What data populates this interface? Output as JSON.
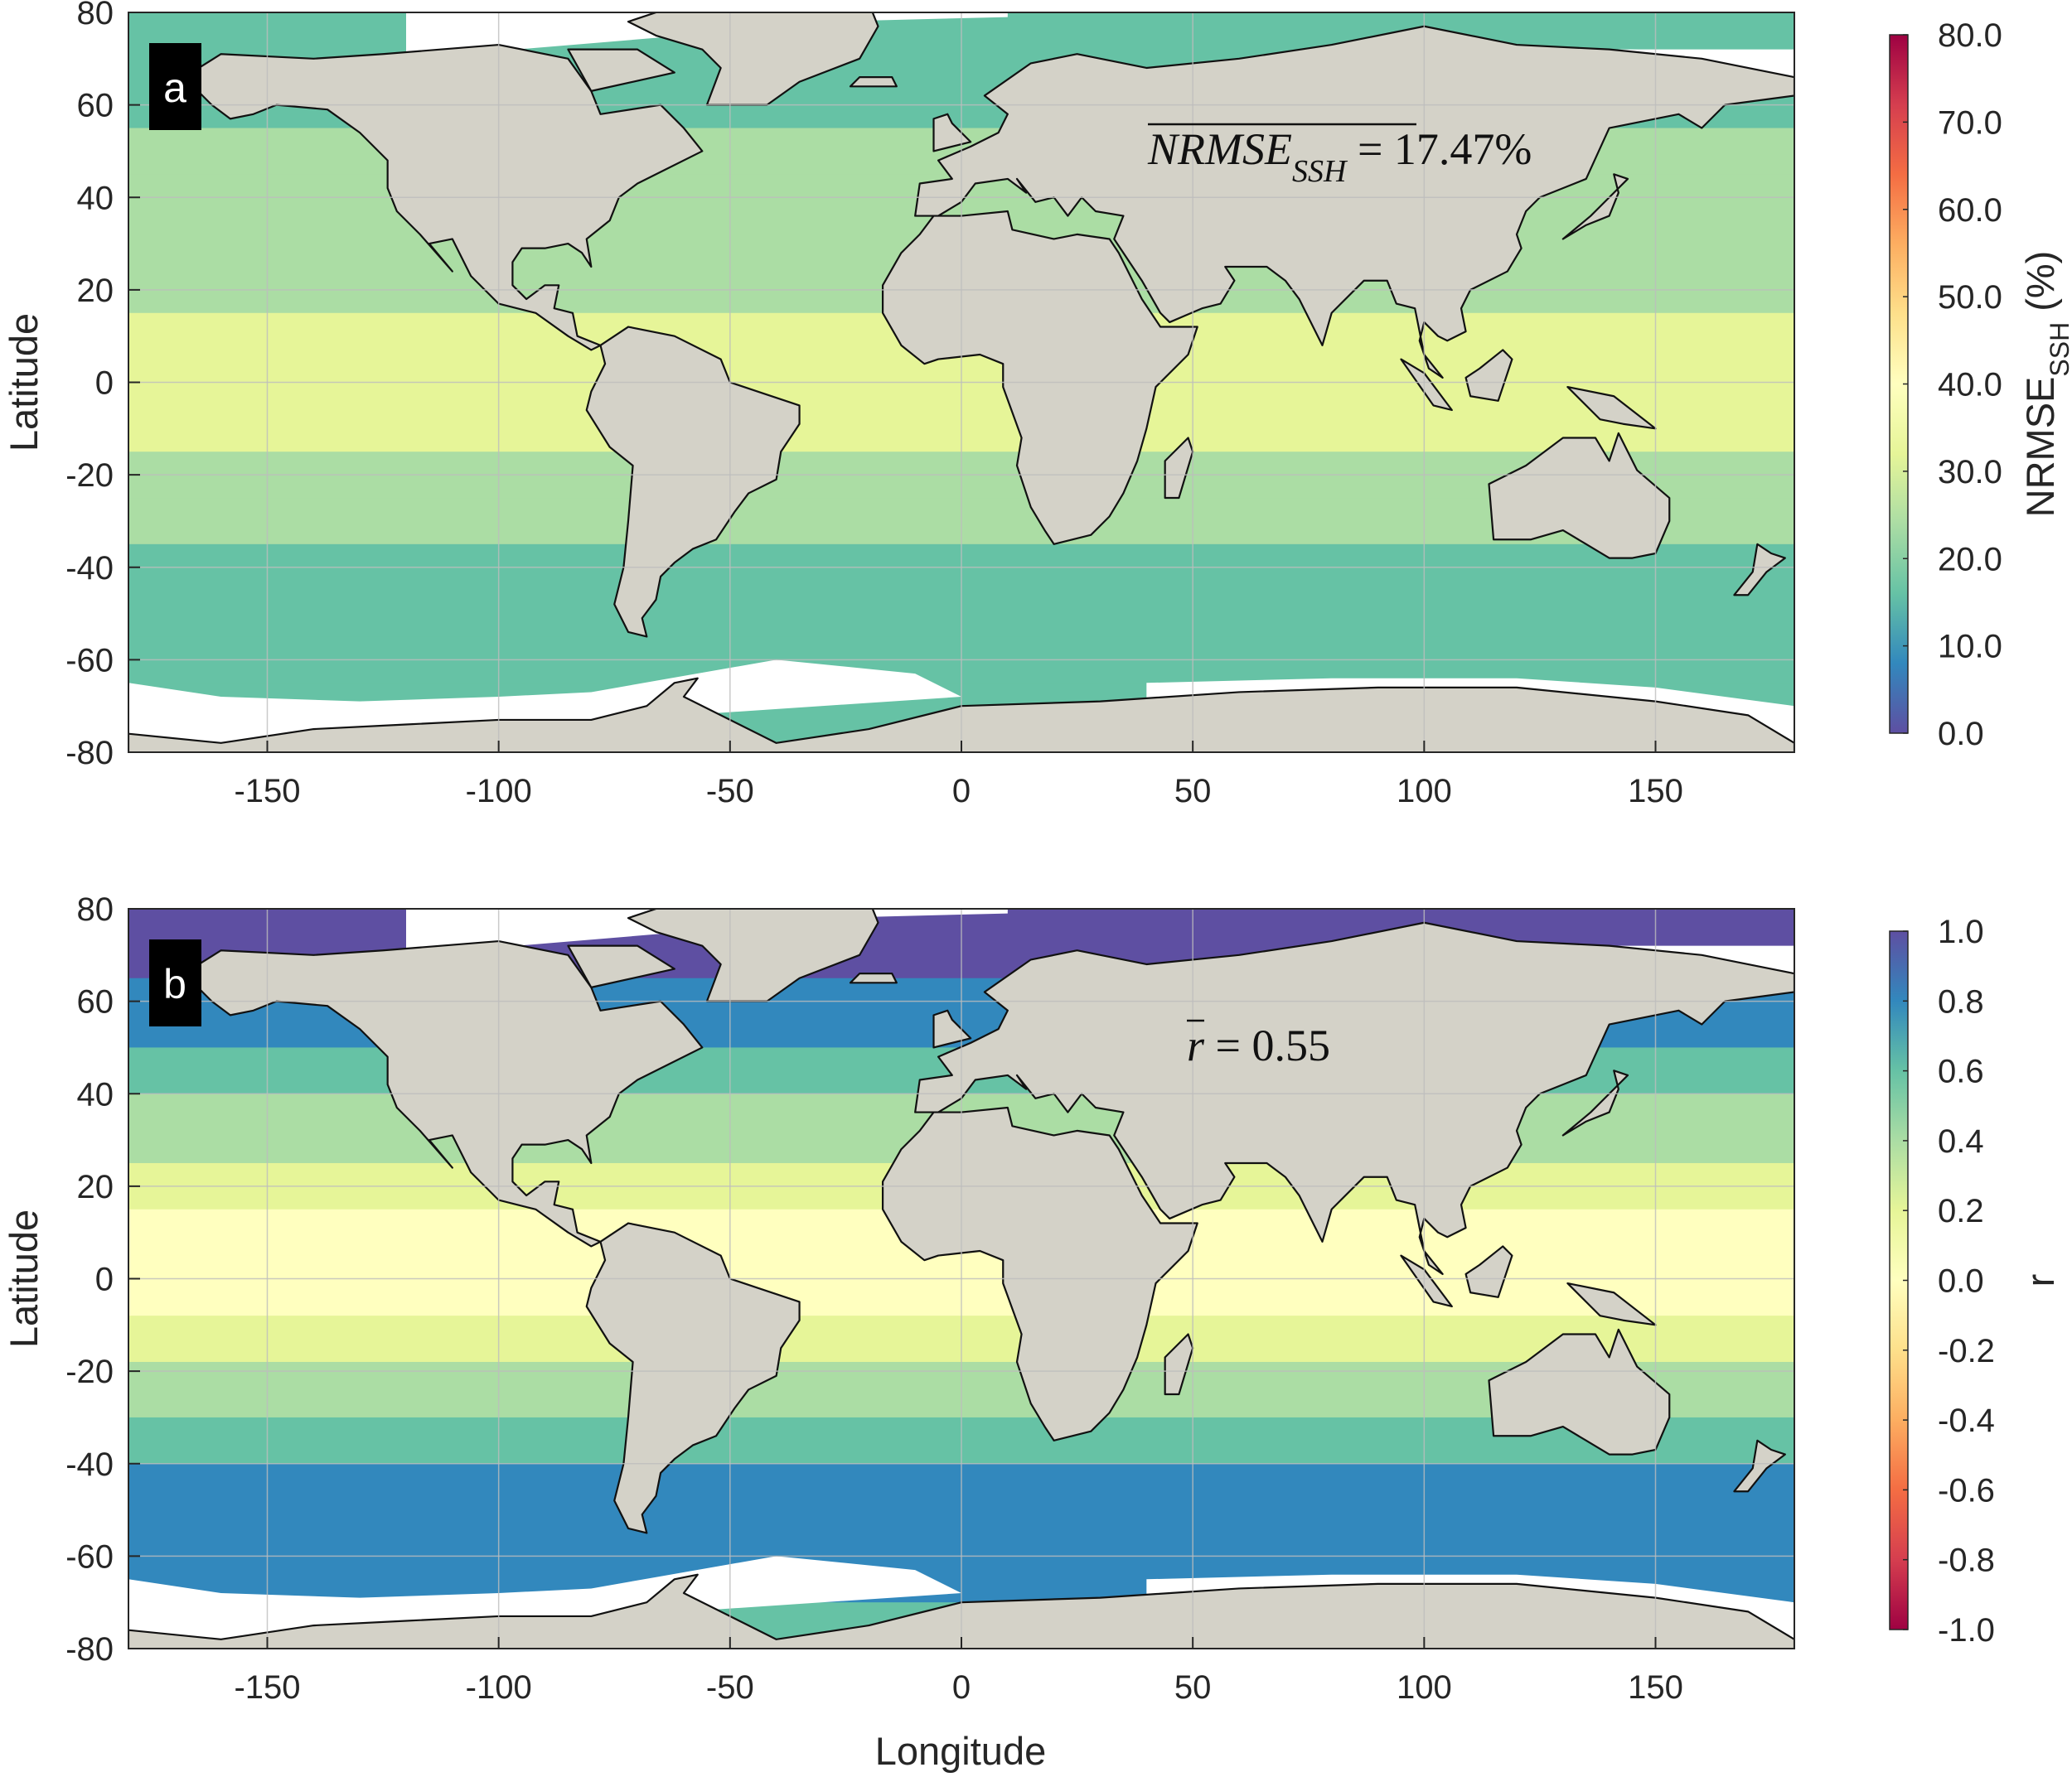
{
  "figure": {
    "xlabel": "Longitude",
    "colors": {
      "land": "#d4d2c8",
      "nodata": "#ffffff",
      "grid": "#bdbdbd",
      "frame": "#262626",
      "panel_letter_bg": "#000000"
    }
  },
  "chart_data": [
    {
      "type": "heatmap",
      "panel": "a",
      "ylabel": "Latitude",
      "xlabel": "",
      "xlim": [
        -180,
        180
      ],
      "ylim": [
        -80,
        80
      ],
      "xticks": [
        -150,
        -100,
        -50,
        0,
        50,
        100,
        150
      ],
      "yticks": [
        80,
        60,
        40,
        20,
        0,
        -20,
        -40,
        -60,
        -80
      ],
      "grid": true,
      "annotation": {
        "main": "NRMSE",
        "sub": "SSH",
        "rest": " = 17.47%",
        "overline": true
      },
      "colorbar": {
        "label_main": "NRMSE",
        "label_sub": "SSH",
        "label_suffix": " (%)",
        "range": [
          0,
          80
        ],
        "ticks": [
          "80.0",
          "70.0",
          "60.0",
          "50.0",
          "40.0",
          "30.0",
          "20.0",
          "10.0",
          "0.0"
        ],
        "colormap": [
          "#5e4fa2",
          "#3288bd",
          "#66c2a5",
          "#abdda4",
          "#e6f598",
          "#ffffbf",
          "#fee08b",
          "#fdae61",
          "#f46d43",
          "#d53e4f",
          "#9e0142"
        ]
      },
      "mean_value": 17.47
    },
    {
      "type": "heatmap",
      "panel": "b",
      "ylabel": "Latitude",
      "xlabel": "Longitude",
      "xlim": [
        -180,
        180
      ],
      "ylim": [
        -80,
        80
      ],
      "xticks": [
        -150,
        -100,
        -50,
        0,
        50,
        100,
        150
      ],
      "yticks": [
        80,
        60,
        40,
        20,
        0,
        -20,
        -40,
        -60,
        -80
      ],
      "grid": true,
      "annotation": {
        "main": "r",
        "sub": "",
        "rest": " = 0.55",
        "overline": true
      },
      "colorbar": {
        "label_main": "r",
        "label_sub": "",
        "label_suffix": "",
        "range": [
          -1,
          1
        ],
        "ticks": [
          "1.0",
          "0.8",
          "0.6",
          "0.4",
          "0.2",
          "0.0",
          "-0.2",
          "-0.4",
          "-0.6",
          "-0.8",
          "-1.0"
        ],
        "colormap": [
          "#9e0142",
          "#d53e4f",
          "#f46d43",
          "#fdae61",
          "#fee08b",
          "#ffffbf",
          "#e6f598",
          "#abdda4",
          "#66c2a5",
          "#3288bd",
          "#5e4fa2"
        ]
      },
      "mean_value": 0.55
    }
  ]
}
